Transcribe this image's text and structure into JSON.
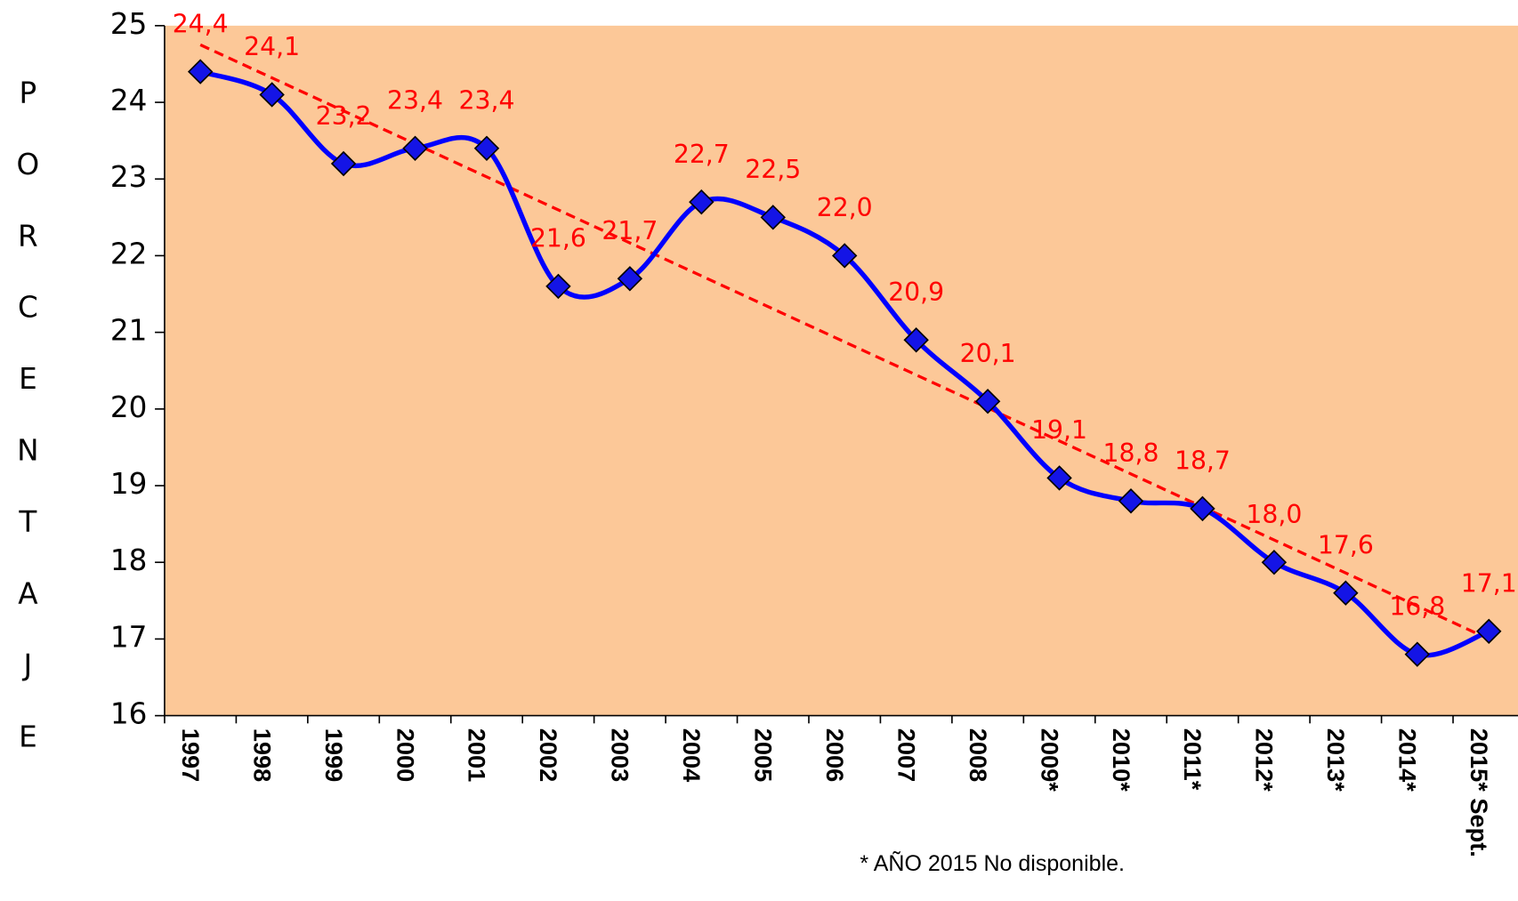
{
  "chart_data": {
    "type": "line",
    "y_label": "PORCENTAJE",
    "footnote": "* AÑO 2015 No disponible.",
    "categories": [
      "1997",
      "1998",
      "1999",
      "2000",
      "2001",
      "2002",
      "2003",
      "2004",
      "2005",
      "2006",
      "2007",
      "2008",
      "2009*",
      "2010*",
      "2011*",
      "2012*",
      "2013*",
      "2014*",
      "2015* Sept."
    ],
    "series": [
      {
        "name": "Porcentaje",
        "color": "#0000ff",
        "marker_color": "#1414e6",
        "values": [
          24.4,
          24.1,
          23.2,
          23.4,
          23.4,
          21.6,
          21.7,
          22.7,
          22.5,
          22.0,
          20.9,
          20.1,
          19.1,
          18.8,
          18.7,
          18.0,
          17.6,
          16.8,
          17.1
        ],
        "value_labels": [
          "24,4",
          "24,1",
          "23,2",
          "23,4",
          "23,4",
          "21,6",
          "21,7",
          "22,7",
          "22,5",
          "22,0",
          "20,9",
          "20,1",
          "19,1",
          "18,8",
          "18,7",
          "18,0",
          "17,6",
          "16,8",
          "17,1"
        ]
      }
    ],
    "trendline": {
      "color": "#ff0000",
      "values": [
        24.75,
        17.0
      ]
    },
    "label_color": "#ff0000",
    "background": "#fcc898",
    "ylim": [
      16,
      25
    ],
    "yticks": [
      16,
      17,
      18,
      19,
      20,
      21,
      22,
      23,
      24,
      25
    ]
  }
}
